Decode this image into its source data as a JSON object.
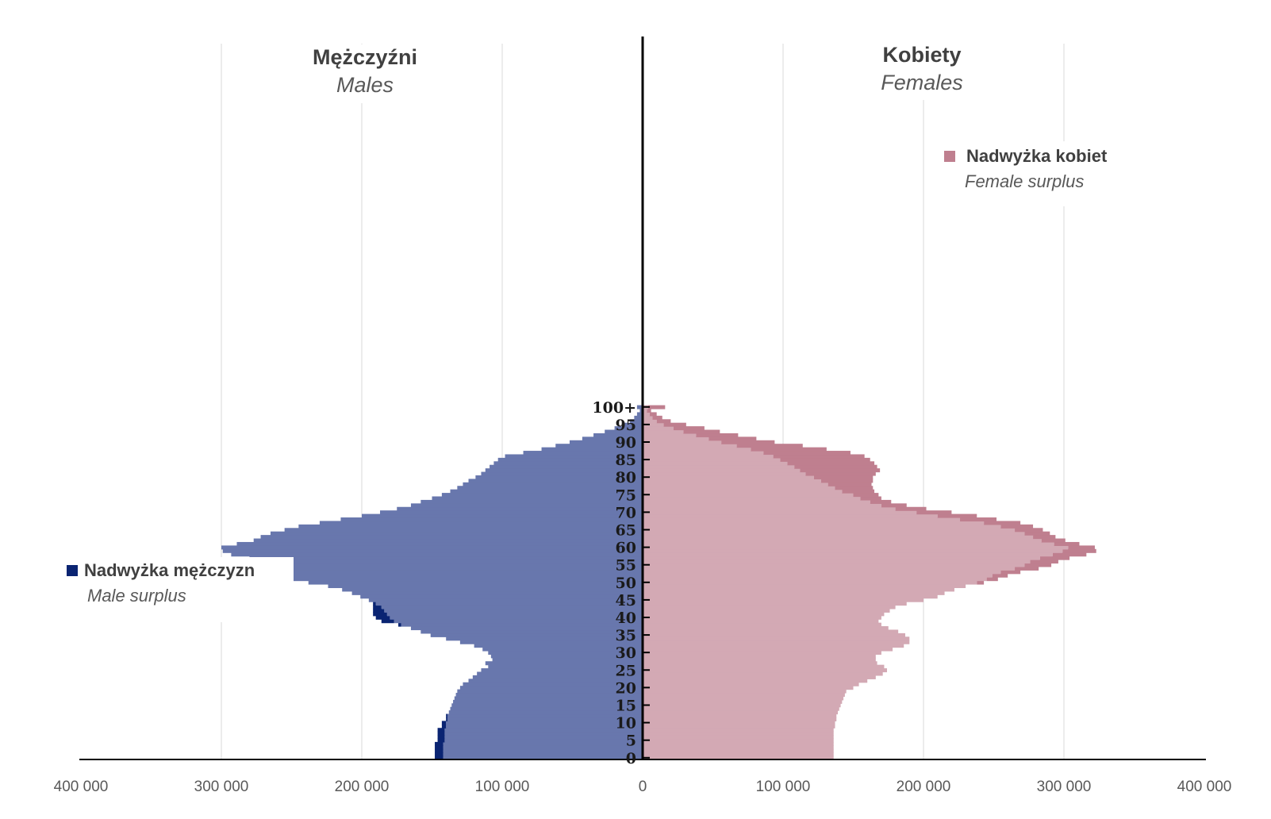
{
  "chart_data": {
    "type": "bar",
    "orientation": "horizontal-population-pyramid",
    "titles": {
      "left_main": "Mężczyźni",
      "left_sub": "Males",
      "right_main": "Kobiety",
      "right_sub": "Females"
    },
    "x_axis": {
      "range": [
        -400000,
        400000
      ],
      "tick_labels": [
        "400 000",
        "300 000",
        "200 000",
        "100 000",
        "0",
        "100 000",
        "200 000",
        "300 000",
        "400 000"
      ],
      "gridlines": true
    },
    "y_axis": {
      "range": [
        0,
        101
      ],
      "tick_labels": [
        "0",
        "5",
        "10",
        "15",
        "20",
        "25",
        "30",
        "35",
        "40",
        "45",
        "50",
        "55",
        "60",
        "65",
        "70",
        "75",
        "80",
        "85",
        "90",
        "95",
        "100+"
      ]
    },
    "legend": [
      {
        "label": "Nadwyżka kobiet",
        "sublabel": "Female surplus",
        "color": "#bf7f8f",
        "position": "upper-right"
      },
      {
        "label": "Nadwyżka mężczyzn",
        "sublabel": "Male surplus",
        "color": "#0a2472",
        "position": "lower-left"
      }
    ],
    "colors": {
      "males": "#6877ad",
      "females": "#d3a9b4",
      "male_surplus": "#0a2472",
      "female_surplus": "#bf7f8f"
    },
    "ages": [
      0,
      1,
      2,
      3,
      4,
      5,
      6,
      7,
      8,
      9,
      10,
      11,
      12,
      13,
      14,
      15,
      16,
      17,
      18,
      19,
      20,
      21,
      22,
      23,
      24,
      25,
      26,
      27,
      28,
      29,
      30,
      31,
      32,
      33,
      34,
      35,
      36,
      37,
      38,
      39,
      40,
      41,
      42,
      43,
      44,
      45,
      46,
      47,
      48,
      49,
      50,
      51,
      52,
      53,
      54,
      55,
      56,
      57,
      58,
      59,
      60,
      61,
      62,
      63,
      64,
      65,
      66,
      67,
      68,
      69,
      70,
      71,
      72,
      73,
      74,
      75,
      76,
      77,
      78,
      79,
      80,
      81,
      82,
      83,
      84,
      85,
      86,
      87,
      88,
      89,
      90,
      91,
      92,
      93,
      94,
      95,
      96,
      97,
      98,
      99,
      100
    ],
    "series": [
      {
        "name": "Mężczyźni",
        "values": [
          142000,
          142000,
          142000,
          142000,
          142000,
          141000,
          141000,
          141000,
          141000,
          140000,
          140000,
          139000,
          139000,
          138000,
          137000,
          136000,
          135000,
          134000,
          133000,
          132000,
          130000,
          128000,
          124000,
          121000,
          118000,
          115000,
          110000,
          112000,
          107000,
          108000,
          110000,
          114000,
          120000,
          130000,
          140000,
          151000,
          158000,
          165000,
          172000,
          177000,
          180000,
          182000,
          184000,
          186000,
          190000,
          195000,
          201000,
          207000,
          214000,
          224000,
          238000,
          255000,
          264000,
          267000,
          267000,
          270000,
          275000,
          280000,
          293000,
          299000,
          300000,
          289000,
          277000,
          272000,
          265000,
          255000,
          245000,
          230000,
          215000,
          200000,
          187000,
          175000,
          165000,
          158000,
          150000,
          143000,
          137000,
          132000,
          128000,
          124000,
          119000,
          115000,
          112000,
          109000,
          106000,
          103000,
          98000,
          85000,
          72000,
          62000,
          52000,
          43000,
          35000,
          27000,
          20000,
          13000,
          9000,
          6000,
          4000,
          2000,
          4000
        ]
      },
      {
        "name": "Kobiety",
        "values": [
          136000,
          136000,
          136000,
          136000,
          136000,
          136000,
          136000,
          136000,
          136000,
          137000,
          137000,
          138000,
          138000,
          139000,
          140000,
          141000,
          142000,
          143000,
          144000,
          145000,
          150000,
          154000,
          160000,
          166000,
          171000,
          174000,
          172000,
          167000,
          166000,
          166000,
          170000,
          178000,
          186000,
          190000,
          190000,
          187000,
          182000,
          175000,
          170000,
          168000,
          170000,
          172000,
          176000,
          180000,
          188000,
          200000,
          210000,
          215000,
          222000,
          230000,
          238000,
          245000,
          249000,
          255000,
          265000,
          272000,
          276000,
          283000,
          292000,
          299000,
          303000,
          293000,
          284000,
          278000,
          272000,
          265000,
          255000,
          243000,
          226000,
          210000,
          195000,
          180000,
          170000,
          162000,
          155000,
          150000,
          142000,
          137000,
          132000,
          127000,
          122000,
          116000,
          112000,
          108000,
          103000,
          98000,
          93000,
          86000,
          77000,
          67000,
          56000,
          47000,
          38000,
          29000,
          22000,
          15000,
          10000,
          7000,
          5000,
          3000,
          4000
        ]
      },
      {
        "name": "Nadwyżka mężczyzn",
        "values": [
          6000,
          6000,
          6000,
          6000,
          6000,
          5000,
          5000,
          5000,
          5000,
          3000,
          3000,
          1000,
          1000,
          0,
          0,
          0,
          0,
          0,
          0,
          0,
          0,
          0,
          0,
          0,
          0,
          0,
          0,
          0,
          0,
          0,
          0,
          0,
          0,
          0,
          0,
          0,
          0,
          0,
          2000,
          9000,
          10000,
          10000,
          8000,
          6000,
          2000,
          0,
          0,
          0,
          0,
          0,
          0,
          0,
          0,
          0,
          0,
          0,
          0,
          0,
          0,
          0,
          0,
          0,
          0,
          0,
          0,
          0,
          0,
          0,
          0,
          0,
          0,
          0,
          0,
          0,
          0,
          0,
          0,
          0,
          0,
          0,
          0,
          0,
          0,
          0,
          0,
          0,
          0,
          0,
          0,
          0,
          0,
          0,
          0,
          0,
          0,
          0,
          0,
          0,
          0,
          0,
          0
        ]
      },
      {
        "name": "Nadwyżka kobiet",
        "values": [
          0,
          0,
          0,
          0,
          0,
          0,
          0,
          0,
          0,
          0,
          0,
          0,
          0,
          0,
          0,
          0,
          0,
          0,
          0,
          0,
          0,
          0,
          0,
          0,
          0,
          0,
          0,
          0,
          0,
          0,
          0,
          0,
          0,
          0,
          0,
          0,
          0,
          0,
          0,
          0,
          0,
          0,
          0,
          0,
          0,
          0,
          0,
          0,
          0,
          0,
          5000,
          8000,
          11000,
          14000,
          17000,
          19000,
          20000,
          21000,
          24000,
          24000,
          19000,
          18000,
          17000,
          16000,
          18000,
          20000,
          23000,
          26000,
          26000,
          28000,
          25000,
          22000,
          18000,
          15000,
          15000,
          18000,
          23000,
          27000,
          31000,
          37000,
          42000,
          50000,
          57000,
          59000,
          62000,
          64000,
          65000,
          62000,
          54000,
          47000,
          38000,
          34000,
          30000,
          26000,
          22000,
          16000,
          10000,
          7000,
          5000,
          3000,
          12000
        ]
      }
    ]
  }
}
